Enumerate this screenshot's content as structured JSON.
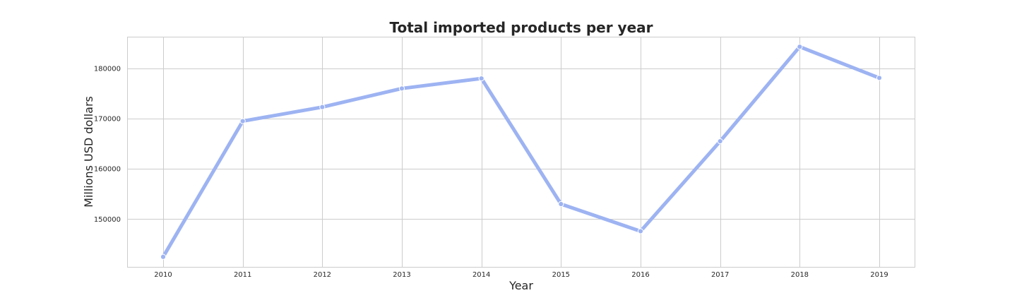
{
  "chart_data": {
    "type": "line",
    "title": "Total imported products per year",
    "xlabel": "Year",
    "ylabel": "Millions USD dollars",
    "x": [
      "2010",
      "2011",
      "2012",
      "2013",
      "2014",
      "2015",
      "2016",
      "2017",
      "2018",
      "2019"
    ],
    "series": [
      {
        "values": [
          142500,
          169500,
          172300,
          176000,
          178000,
          153000,
          147600,
          165500,
          184300,
          178100
        ],
        "color": "#9db3f2"
      }
    ],
    "yticks": [
      150000,
      160000,
      170000,
      180000
    ],
    "ylim": [
      140500,
      186300
    ],
    "grid": true,
    "legend": "none"
  }
}
